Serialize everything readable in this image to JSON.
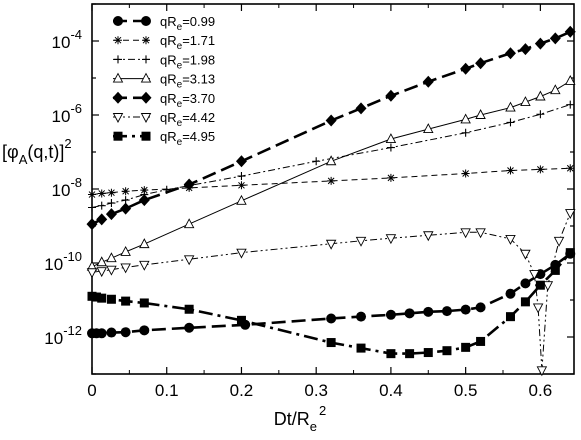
{
  "chart_data": {
    "type": "line",
    "xlabel": "Dt/R",
    "xlabel_sub": "e",
    "xlabel_sup": "2",
    "ylabel": "[φ",
    "ylabel_sub": "A",
    "ylabel_rest": "(q,t)]",
    "ylabel_sup": "2",
    "xlim": [
      0,
      0.645
    ],
    "ylim_log10": [
      -13,
      -3
    ],
    "y_scale": "log",
    "x_ticks": [
      "0",
      "0.1",
      "0.2",
      "0.3",
      "0.4",
      "0.5",
      "0.6"
    ],
    "y_ticks": [
      {
        "base": "10",
        "exp": "-4"
      },
      {
        "base": "10",
        "exp": "-6"
      },
      {
        "base": "10",
        "exp": "-8"
      },
      {
        "base": "10",
        "exp": "-10"
      },
      {
        "base": "10",
        "exp": "-12"
      }
    ],
    "legend_position": "top-left",
    "series": [
      {
        "name_prefix": "qR",
        "name_sub": "e",
        "name_value": "=0.99",
        "marker": "circle",
        "line": "long-dash",
        "x": [
          0,
          0.006,
          0.013,
          0.026,
          0.045,
          0.07,
          0.13,
          0.205,
          0.32,
          0.36,
          0.4,
          0.425,
          0.45,
          0.475,
          0.5,
          0.52,
          0.56,
          0.58,
          0.6,
          0.62,
          0.64
        ],
        "log10y": [
          -11.9,
          -11.9,
          -11.9,
          -11.88,
          -11.87,
          -11.82,
          -11.75,
          -11.67,
          -11.5,
          -11.45,
          -11.4,
          -11.36,
          -11.32,
          -11.3,
          -11.26,
          -11.2,
          -10.83,
          -10.55,
          -10.3,
          -10.05,
          -9.75
        ]
      },
      {
        "name_prefix": "qR",
        "name_sub": "e",
        "name_value": "=1.71",
        "marker": "asterisk",
        "line": "dashed",
        "x": [
          0,
          0.013,
          0.026,
          0.045,
          0.07,
          0.13,
          0.2,
          0.32,
          0.4,
          0.5,
          0.56,
          0.6,
          0.64
        ],
        "log10y": [
          -8.15,
          -8.12,
          -8.1,
          -8.06,
          -8.03,
          -7.97,
          -7.9,
          -7.78,
          -7.7,
          -7.58,
          -7.5,
          -7.47,
          -7.44
        ]
      },
      {
        "name_prefix": "qR",
        "name_sub": "e",
        "name_value": "=1.98",
        "marker": "plus",
        "line": "dot-dash",
        "x": [
          0,
          0.013,
          0.026,
          0.045,
          0.07,
          0.1,
          0.2,
          0.3,
          0.4,
          0.5,
          0.56,
          0.6,
          0.64
        ],
        "log10y": [
          -8.5,
          -8.45,
          -8.38,
          -8.3,
          -8.15,
          -8.02,
          -7.65,
          -7.25,
          -6.88,
          -6.48,
          -6.2,
          -5.98,
          -5.72
        ]
      },
      {
        "name_prefix": "qR",
        "name_sub": "e",
        "name_value": "=3.13",
        "marker": "triangle-up",
        "line": "solid-thin",
        "x": [
          0,
          0.013,
          0.026,
          0.045,
          0.07,
          0.13,
          0.2,
          0.32,
          0.4,
          0.45,
          0.5,
          0.52,
          0.56,
          0.58,
          0.6,
          0.62,
          0.64
        ],
        "log10y": [
          -10.1,
          -9.98,
          -9.87,
          -9.7,
          -9.49,
          -8.95,
          -8.32,
          -7.25,
          -6.65,
          -6.38,
          -6.12,
          -6.0,
          -5.8,
          -5.65,
          -5.5,
          -5.33,
          -5.08
        ]
      },
      {
        "name_prefix": "qR",
        "name_sub": "e",
        "name_value": "=3.70",
        "marker": "diamond",
        "line": "long-dash",
        "x": [
          0,
          0.013,
          0.026,
          0.045,
          0.07,
          0.13,
          0.2,
          0.32,
          0.36,
          0.4,
          0.45,
          0.5,
          0.52,
          0.56,
          0.58,
          0.6,
          0.62,
          0.64
        ],
        "log10y": [
          -8.95,
          -8.82,
          -8.68,
          -8.53,
          -8.3,
          -7.88,
          -7.25,
          -6.15,
          -5.82,
          -5.48,
          -5.1,
          -4.75,
          -4.6,
          -4.33,
          -4.22,
          -4.07,
          -3.93,
          -3.75
        ]
      },
      {
        "name_prefix": "qR",
        "name_sub": "e",
        "name_value": "=4.42",
        "marker": "triangle-down",
        "line": "dot-dot-dash",
        "x": [
          0,
          0.013,
          0.026,
          0.045,
          0.07,
          0.13,
          0.2,
          0.32,
          0.36,
          0.4,
          0.45,
          0.5,
          0.52,
          0.56,
          0.58,
          0.592,
          0.597,
          0.602,
          0.61,
          0.625,
          0.64
        ],
        "log10y": [
          -10.25,
          -10.22,
          -10.18,
          -10.12,
          -10.05,
          -9.9,
          -9.72,
          -9.48,
          -9.4,
          -9.33,
          -9.25,
          -9.17,
          -9.17,
          -9.35,
          -9.75,
          -10.3,
          -11.2,
          -12.9,
          -10.6,
          -9.4,
          -8.65
        ]
      },
      {
        "name_prefix": "qR",
        "name_sub": "e",
        "name_value": "=4.95",
        "marker": "square",
        "line": "long-dash-dot",
        "x": [
          0,
          0.006,
          0.013,
          0.026,
          0.045,
          0.07,
          0.13,
          0.2,
          0.32,
          0.36,
          0.4,
          0.425,
          0.45,
          0.475,
          0.5,
          0.52,
          0.56,
          0.58,
          0.6,
          0.62,
          0.64
        ],
        "log10y": [
          -10.9,
          -10.92,
          -10.95,
          -10.98,
          -11.03,
          -11.08,
          -11.25,
          -11.55,
          -12.15,
          -12.3,
          -12.45,
          -12.45,
          -12.42,
          -12.37,
          -12.28,
          -12.12,
          -11.45,
          -11.05,
          -10.6,
          -10.2,
          -9.72
        ]
      }
    ]
  }
}
